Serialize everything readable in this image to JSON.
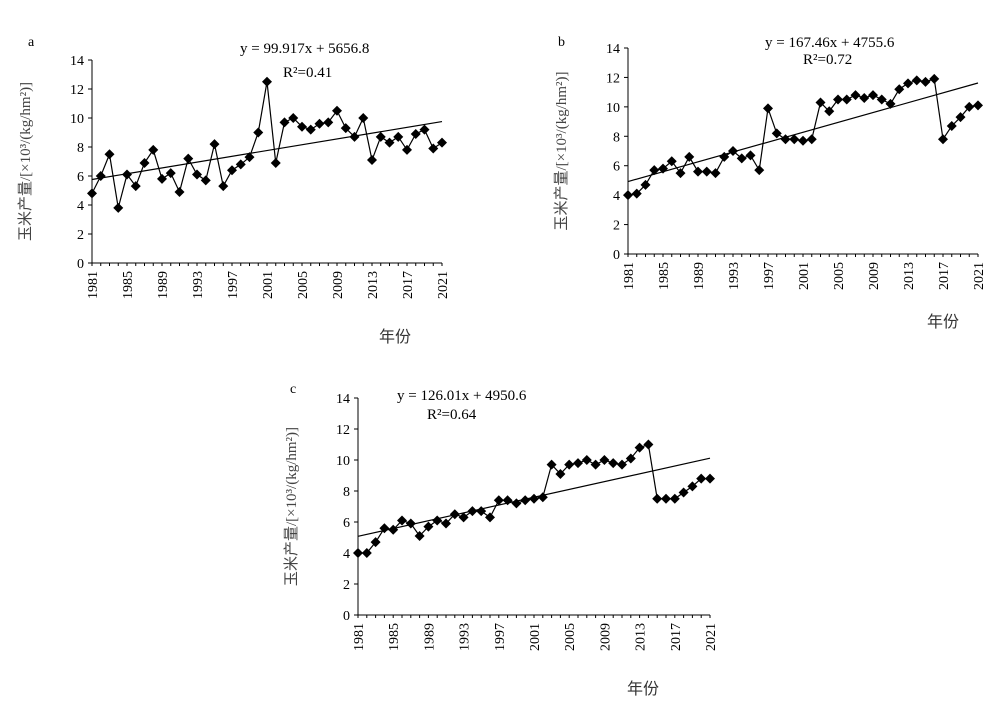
{
  "chart_data": [
    {
      "type": "line",
      "panel_label": "a",
      "ylabel": "玉米产量/[×10³/(kg/hm²)]",
      "xlabel": "年份",
      "ylim": [
        0,
        14
      ],
      "yticks": [
        0,
        2,
        4,
        6,
        8,
        10,
        12,
        14
      ],
      "xticks": [
        "1981",
        "1985",
        "1989",
        "1993",
        "1997",
        "2001",
        "2005",
        "2009",
        "2013",
        "2017",
        "2021"
      ],
      "equation": "y = 99.917x + 5656.8",
      "r2": "R²=0.41",
      "trend": {
        "slope": 99.917,
        "intercept": 5656.8
      },
      "x": [
        1981,
        1982,
        1983,
        1984,
        1985,
        1986,
        1987,
        1988,
        1989,
        1990,
        1991,
        1992,
        1993,
        1994,
        1995,
        1996,
        1997,
        1998,
        1999,
        2000,
        2001,
        2002,
        2003,
        2004,
        2005,
        2006,
        2007,
        2008,
        2009,
        2010,
        2011,
        2012,
        2013,
        2014,
        2015,
        2016,
        2017,
        2018,
        2019,
        2020,
        2021
      ],
      "values": [
        4.8,
        6.0,
        7.5,
        3.8,
        6.1,
        5.3,
        6.9,
        7.8,
        5.8,
        6.2,
        4.9,
        7.2,
        6.1,
        5.7,
        8.2,
        5.3,
        6.4,
        6.8,
        7.3,
        9.0,
        12.5,
        6.9,
        9.7,
        10.0,
        9.4,
        9.2,
        9.6,
        9.7,
        10.5,
        9.3,
        8.7,
        10.0,
        7.1,
        8.7,
        8.3,
        8.7,
        7.8,
        8.9,
        9.2,
        7.9,
        8.3
      ]
    },
    {
      "type": "line",
      "panel_label": "b",
      "ylabel": "玉米产量/[×10³/(kg/hm²)]",
      "xlabel": "年份",
      "ylim": [
        0,
        14
      ],
      "yticks": [
        0,
        2,
        4,
        6,
        8,
        10,
        12,
        14
      ],
      "xticks": [
        "1981",
        "1985",
        "1989",
        "1993",
        "1997",
        "2001",
        "2005",
        "2009",
        "2013",
        "2017",
        "2021"
      ],
      "equation": "y = 167.46x + 4755.6",
      "r2": "R²=0.72",
      "trend": {
        "slope": 167.46,
        "intercept": 4755.6
      },
      "x": [
        1981,
        1982,
        1983,
        1984,
        1985,
        1986,
        1987,
        1988,
        1989,
        1990,
        1991,
        1992,
        1993,
        1994,
        1995,
        1996,
        1997,
        1998,
        1999,
        2000,
        2001,
        2002,
        2003,
        2004,
        2005,
        2006,
        2007,
        2008,
        2009,
        2010,
        2011,
        2012,
        2013,
        2014,
        2015,
        2016,
        2017,
        2018,
        2019,
        2020,
        2021
      ],
      "values": [
        4.0,
        4.1,
        4.7,
        5.7,
        5.8,
        6.3,
        5.5,
        6.6,
        5.6,
        5.6,
        5.5,
        6.6,
        7.0,
        6.5,
        6.7,
        5.7,
        9.9,
        8.2,
        7.8,
        7.8,
        7.7,
        7.8,
        10.3,
        9.7,
        10.5,
        10.5,
        10.8,
        10.6,
        10.8,
        10.5,
        10.2,
        11.2,
        11.6,
        11.8,
        11.7,
        11.9,
        7.8,
        8.7,
        9.3,
        10.0,
        10.1
      ]
    },
    {
      "type": "line",
      "panel_label": "c",
      "ylabel": "玉米产量/[×10³/(kg/hm²)]",
      "xlabel": "年份",
      "ylim": [
        0,
        14
      ],
      "yticks": [
        0,
        2,
        4,
        6,
        8,
        10,
        12,
        14
      ],
      "xticks": [
        "1981",
        "1985",
        "1989",
        "1993",
        "1997",
        "2001",
        "2005",
        "2009",
        "2013",
        "2017",
        "2021"
      ],
      "equation": "y = 126.01x + 4950.6",
      "r2": "R²=0.64",
      "trend": {
        "slope": 126.01,
        "intercept": 4950.6
      },
      "x": [
        1981,
        1982,
        1983,
        1984,
        1985,
        1986,
        1987,
        1988,
        1989,
        1990,
        1991,
        1992,
        1993,
        1994,
        1995,
        1996,
        1997,
        1998,
        1999,
        2000,
        2001,
        2002,
        2003,
        2004,
        2005,
        2006,
        2007,
        2008,
        2009,
        2010,
        2011,
        2012,
        2013,
        2014,
        2015,
        2016,
        2017,
        2018,
        2019,
        2020,
        2021
      ],
      "values": [
        4.0,
        4.0,
        4.7,
        5.6,
        5.5,
        6.1,
        5.9,
        5.1,
        5.7,
        6.1,
        5.9,
        6.5,
        6.3,
        6.7,
        6.7,
        6.3,
        7.4,
        7.4,
        7.2,
        7.4,
        7.5,
        7.6,
        9.7,
        9.1,
        9.7,
        9.8,
        10.0,
        9.7,
        10.0,
        9.8,
        9.7,
        10.1,
        10.8,
        11.0,
        7.5,
        7.5,
        7.5,
        7.9,
        8.3,
        8.8,
        8.8
      ]
    }
  ]
}
